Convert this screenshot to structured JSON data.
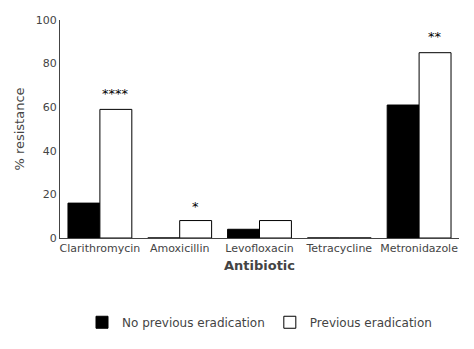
{
  "chart_data": {
    "type": "bar",
    "xlabel": "Antibiotic",
    "ylabel": "% resistance",
    "categories": [
      "Clarithromycin",
      "Amoxicillin",
      "Levofloxacin",
      "Tetracycline",
      "Metronidazole"
    ],
    "series": [
      {
        "name": "No previous eradication",
        "color": "#000000",
        "values": [
          16,
          0,
          4,
          0,
          61
        ]
      },
      {
        "name": "Previous eradication",
        "color": "#ffffff",
        "values": [
          59,
          8,
          8,
          0,
          85
        ]
      }
    ],
    "annotations": [
      {
        "category": "Clarithromycin",
        "series": "Previous eradication",
        "text": "****",
        "y": 62
      },
      {
        "category": "Amoxicillin",
        "series": "Previous eradication",
        "text": "*",
        "y": 10
      },
      {
        "category": "Metronidazole",
        "series": "Previous eradication",
        "text": "**",
        "y": 88
      }
    ],
    "ylim": [
      0,
      100
    ],
    "yticks": [
      0,
      20,
      40,
      60,
      80,
      100
    ],
    "grid": false,
    "legend": "bottom"
  }
}
